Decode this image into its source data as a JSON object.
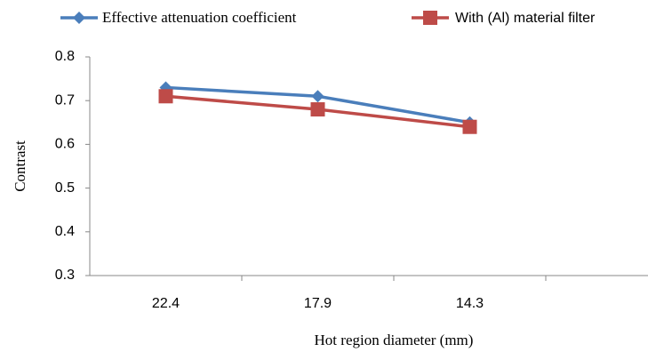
{
  "chart_data": {
    "type": "line",
    "categories": [
      "22.4",
      "17.9",
      "14.3",
      null
    ],
    "series": [
      {
        "name": "Effective attenuation coefficient",
        "color": "#4a7ebb",
        "marker": "diamond",
        "values": [
          0.73,
          0.71,
          0.65,
          null
        ]
      },
      {
        "name": "With (Al) material filter",
        "color": "#be4b48",
        "marker": "square",
        "values": [
          0.71,
          0.68,
          0.64,
          null
        ]
      }
    ],
    "xlabel": "Hot region diameter (mm)",
    "ylabel": "Contrast",
    "ylim": [
      0.3,
      0.8
    ],
    "yticks": [
      0.3,
      0.4,
      0.5,
      0.6,
      0.7,
      0.8
    ],
    "grid": false,
    "legend": "top"
  }
}
